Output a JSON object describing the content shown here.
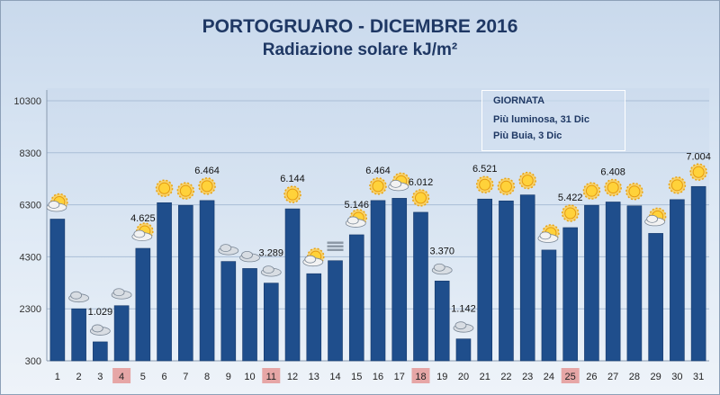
{
  "chart_data": {
    "type": "bar",
    "title": "PORTOGRUARO - DICEMBRE 2016",
    "subtitle": "Radiazione solare kJ/m²",
    "xlabel": "",
    "ylabel": "",
    "ylim": [
      300,
      10300
    ],
    "yticks": [
      "300",
      "2300",
      "4300",
      "6300",
      "8300",
      "10300"
    ],
    "grid": true,
    "categories": [
      "1",
      "2",
      "3",
      "4",
      "5",
      "6",
      "7",
      "8",
      "9",
      "10",
      "11",
      "12",
      "13",
      "14",
      "15",
      "16",
      "17",
      "18",
      "19",
      "20",
      "21",
      "22",
      "23",
      "24",
      "25",
      "26",
      "27",
      "28",
      "29",
      "30",
      "31"
    ],
    "values": [
      5750,
      2300,
      1029,
      2420,
      4625,
      6380,
      6280,
      6464,
      4120,
      3850,
      3289,
      6144,
      3650,
      4150,
      5146,
      6464,
      6550,
      6012,
      3370,
      1142,
      6521,
      6450,
      6680,
      4560,
      5422,
      6280,
      6408,
      6260,
      5200,
      6500,
      7004
    ],
    "data_labels": [
      {
        "day": 3,
        "text": "1.029"
      },
      {
        "day": 5,
        "text": "4.625"
      },
      {
        "day": 8,
        "text": "6.464"
      },
      {
        "day": 11,
        "text": "3.289"
      },
      {
        "day": 12,
        "text": "6.144"
      },
      {
        "day": 15,
        "text": "5.146"
      },
      {
        "day": 16,
        "text": "6.464"
      },
      {
        "day": 18,
        "text": "6.012"
      },
      {
        "day": 19,
        "text": "3.370"
      },
      {
        "day": 20,
        "text": "1.142"
      },
      {
        "day": 21,
        "text": "6.521"
      },
      {
        "day": 25,
        "text": "5.422"
      },
      {
        "day": 27,
        "text": "6.408"
      },
      {
        "day": 31,
        "text": "7.004"
      }
    ],
    "highlighted_days": [
      "4",
      "11",
      "18",
      "25"
    ],
    "weather_icons": [
      "partly-cloudy",
      "cloudy",
      "cloudy",
      "cloudy",
      "partly-cloudy",
      "sunny",
      "sunny",
      "sunny",
      "cloudy",
      "cloudy",
      "cloudy",
      "sunny",
      "partly-cloudy",
      "fog",
      "partly-cloudy",
      "sunny",
      "partly-cloudy",
      "sunny",
      "cloudy",
      "cloudy",
      "sunny",
      "sunny",
      "sunny",
      "partly-cloudy",
      "sunny",
      "sunny",
      "sunny",
      "sunny",
      "partly-cloudy",
      "sunny",
      "sunny"
    ],
    "colors": {
      "bar": "#1f4e8c",
      "highlight": "#e6a6a6",
      "title": "#1f3864"
    }
  },
  "legend": {
    "heading": "GIORNATA",
    "line1": "Più luminosa, 31 Dic",
    "line2": "Più Buia, 3 Dic"
  }
}
